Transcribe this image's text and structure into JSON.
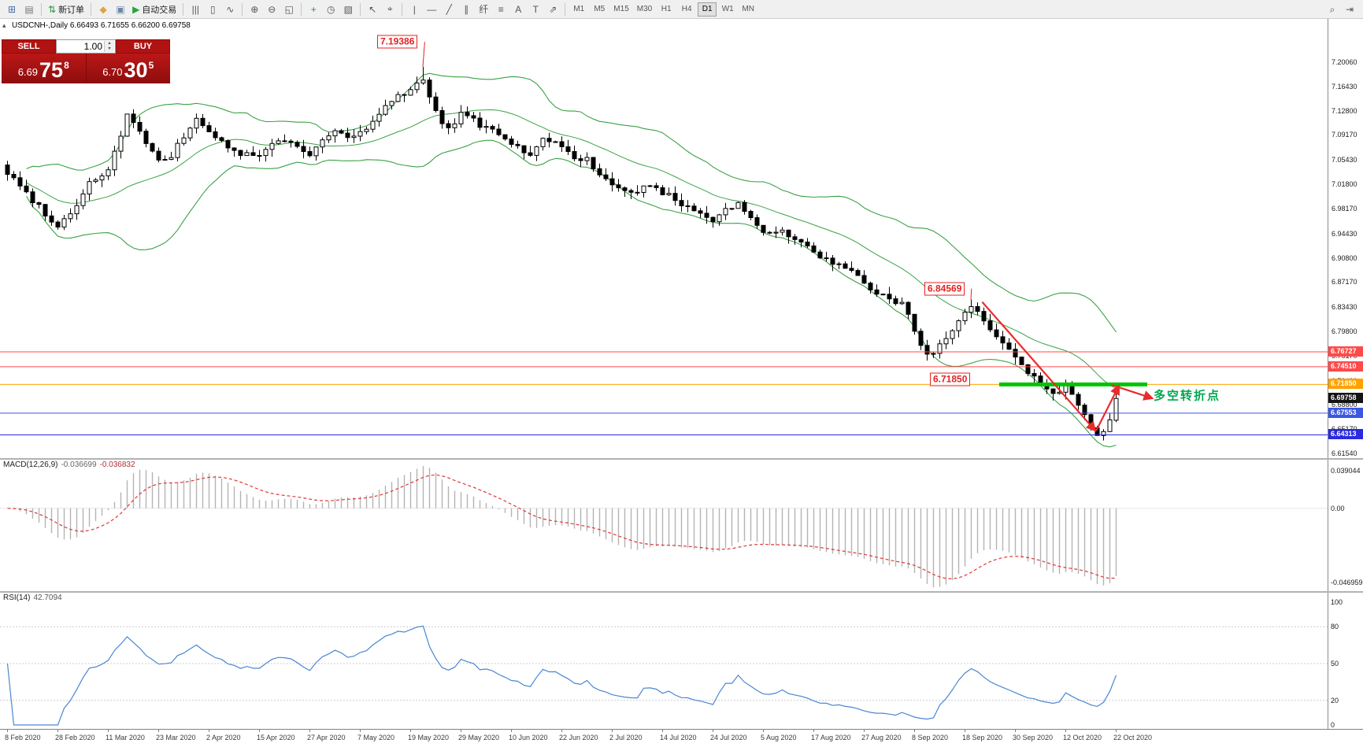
{
  "window": {
    "symbol_period": "USDCNH-,Daily",
    "ohlc_line": "6.66493 6.71655 6.66200 6.69758",
    "collapse_icon": "▴"
  },
  "toolbar": {
    "groups": [
      {
        "items": [
          {
            "name": "new-chart-icon",
            "glyph": "⊞",
            "color": "#4a6fa5"
          },
          {
            "name": "profiles-icon",
            "glyph": "▤",
            "color": "#777777"
          }
        ]
      },
      {
        "items": [
          {
            "name": "new-order-button",
            "glyph": "⇅",
            "color": "#1f9d3a",
            "label": "新订单"
          }
        ]
      },
      {
        "items": [
          {
            "name": "mql5-community-icon",
            "glyph": "◆",
            "color": "#dfa63f"
          },
          {
            "name": "virtual-hosting-icon",
            "glyph": "▣",
            "color": "#6b85a8"
          },
          {
            "name": "autotrading-button",
            "glyph": "▶",
            "color": "#26a53c",
            "label": "自动交易"
          }
        ]
      },
      {
        "items": [
          {
            "name": "bar-chart-icon",
            "glyph": "|||",
            "color": "#555555"
          },
          {
            "name": "candlestick-chart-icon",
            "glyph": "▯",
            "color": "#555555"
          },
          {
            "name": "line-chart-icon",
            "glyph": "∿",
            "color": "#555555"
          }
        ]
      },
      {
        "items": [
          {
            "name": "zoom-in-icon",
            "glyph": "⊕",
            "color": "#555555"
          },
          {
            "name": "zoom-out-icon",
            "glyph": "⊖",
            "color": "#555555"
          },
          {
            "name": "tile-windows-icon",
            "glyph": "◱",
            "color": "#555555"
          }
        ]
      },
      {
        "items": [
          {
            "name": "add-indicator-icon",
            "glyph": "+",
            "color": "#1f9d3a"
          },
          {
            "name": "periods-icon",
            "glyph": "◷",
            "color": "#555555"
          },
          {
            "name": "templates-icon",
            "glyph": "▧",
            "color": "#555555"
          }
        ]
      },
      {
        "items": [
          {
            "name": "cursor-icon",
            "glyph": "↖",
            "color": "#555555"
          },
          {
            "name": "crosshair-icon",
            "glyph": "⌖",
            "color": "#555555"
          }
        ]
      },
      {
        "items": [
          {
            "name": "vertical-line-icon",
            "glyph": "|",
            "color": "#555555"
          },
          {
            "name": "horizontal-line-icon",
            "glyph": "—",
            "color": "#555555"
          },
          {
            "name": "trendline-icon",
            "glyph": "╱",
            "color": "#555555"
          },
          {
            "name": "equidistant-channel-icon",
            "glyph": "∥",
            "color": "#555555"
          },
          {
            "name": "fibonacci-icon",
            "glyph": "纤",
            "color": "#555555"
          },
          {
            "name": "andrews-pitchfork-icon",
            "glyph": "≡",
            "color": "#555555"
          },
          {
            "name": "text-icon",
            "glyph": "A",
            "color": "#555555"
          },
          {
            "name": "text-label-icon",
            "glyph": "T",
            "color": "#555555"
          },
          {
            "name": "arrows-icon",
            "glyph": "⇗",
            "color": "#555555"
          }
        ]
      }
    ],
    "timeframes": {
      "items": [
        "M1",
        "M5",
        "M15",
        "M30",
        "H1",
        "H4",
        "D1",
        "W1",
        "MN"
      ],
      "active": "D1"
    },
    "right_icons": [
      {
        "name": "search-icon",
        "glyph": "⌕",
        "color": "#555555"
      },
      {
        "name": "scroll-to-latest-icon",
        "glyph": "⇥",
        "color": "#555555"
      }
    ]
  },
  "one_click": {
    "sell_label": "SELL",
    "buy_label": "BUY",
    "volume": "1.00",
    "spinner_up": "▴",
    "spinner_down": "▾",
    "sell": {
      "prefix": "6.69",
      "big": "75",
      "pip": "8"
    },
    "buy": {
      "prefix": "6.70",
      "big": "30",
      "pip": "5"
    }
  },
  "chart_data": {
    "type": "candlestick",
    "symbol": "USDCNH-",
    "period": "Daily",
    "ohlc": {
      "open": "6.66493",
      "high": "6.71655",
      "low": "6.66200",
      "close": "6.69758"
    },
    "price_axis_ticks": [
      "7.20060",
      "7.16430",
      "7.12800",
      "7.09170",
      "7.05430",
      "7.01800",
      "6.98170",
      "6.94430",
      "6.90800",
      "6.87170",
      "6.83430",
      "6.79800",
      "6.76170",
      "6.72430",
      "6.68800",
      "6.65170",
      "6.61540"
    ],
    "axis_range": {
      "top_price": 7.2006,
      "bottom_price": 6.6154
    },
    "date_labels": [
      "8 Feb 2020",
      "28 Feb 2020",
      "11 Mar 2020",
      "23 Mar 2020",
      "2 Apr 2020",
      "15 Apr 2020",
      "27 Apr 2020",
      "7 May 2020",
      "19 May 2020",
      "29 May 2020",
      "10 Jun 2020",
      "22 Jun 2020",
      "2 Jul 2020",
      "14 Jul 2020",
      "24 Jul 2020",
      "5 Aug 2020",
      "17 Aug 2020",
      "27 Aug 2020",
      "8 Sep 2020",
      "18 Sep 2020",
      "30 Sep 2020",
      "12 Oct 2020",
      "22 Oct 2020"
    ],
    "candles": {
      "count": 177,
      "per_label": 8,
      "keyframes": [
        [
          0,
          7.035
        ],
        [
          3,
          7.005
        ],
        [
          5,
          6.985
        ],
        [
          8,
          6.955
        ],
        [
          10,
          6.975
        ],
        [
          13,
          7.02
        ],
        [
          16,
          7.04
        ],
        [
          18,
          7.09
        ],
        [
          19,
          7.125
        ],
        [
          21,
          7.095
        ],
        [
          24,
          7.05
        ],
        [
          26,
          7.06
        ],
        [
          28,
          7.09
        ],
        [
          30,
          7.115
        ],
        [
          33,
          7.09
        ],
        [
          36,
          7.065
        ],
        [
          40,
          7.06
        ],
        [
          43,
          7.085
        ],
        [
          46,
          7.075
        ],
        [
          48,
          7.065
        ],
        [
          50,
          7.08
        ],
        [
          52,
          7.1
        ],
        [
          54,
          7.085
        ],
        [
          56,
          7.095
        ],
        [
          58,
          7.11
        ],
        [
          61,
          7.145
        ],
        [
          63,
          7.155
        ],
        [
          66,
          7.175
        ],
        [
          68,
          7.125
        ],
        [
          70,
          7.1
        ],
        [
          72,
          7.125
        ],
        [
          74,
          7.115
        ],
        [
          76,
          7.1
        ],
        [
          78,
          7.095
        ],
        [
          80,
          7.075
        ],
        [
          83,
          7.065
        ],
        [
          85,
          7.085
        ],
        [
          88,
          7.075
        ],
        [
          90,
          7.06
        ],
        [
          92,
          7.055
        ],
        [
          94,
          7.03
        ],
        [
          96,
          7.015
        ],
        [
          98,
          7.005
        ],
        [
          100,
          7.01
        ],
        [
          102,
          7.015
        ],
        [
          104,
          7.005
        ],
        [
          106,
          6.995
        ],
        [
          108,
          6.985
        ],
        [
          110,
          6.975
        ],
        [
          112,
          6.965
        ],
        [
          114,
          6.98
        ],
        [
          116,
          6.99
        ],
        [
          118,
          6.965
        ],
        [
          120,
          6.945
        ],
        [
          122,
          6.95
        ],
        [
          124,
          6.94
        ],
        [
          126,
          6.93
        ],
        [
          128,
          6.915
        ],
        [
          130,
          6.905
        ],
        [
          132,
          6.895
        ],
        [
          134,
          6.885
        ],
        [
          136,
          6.87
        ],
        [
          138,
          6.855
        ],
        [
          140,
          6.845
        ],
        [
          142,
          6.84
        ],
        [
          144,
          6.8
        ],
        [
          146,
          6.762
        ],
        [
          148,
          6.775
        ],
        [
          150,
          6.8
        ],
        [
          152,
          6.822
        ],
        [
          153,
          6.832
        ],
        [
          155,
          6.815
        ],
        [
          157,
          6.792
        ],
        [
          159,
          6.775
        ],
        [
          160,
          6.758
        ],
        [
          162,
          6.738
        ],
        [
          164,
          6.72
        ],
        [
          166,
          6.705
        ],
        [
          168,
          6.716
        ],
        [
          170,
          6.69
        ],
        [
          171,
          6.675
        ],
        [
          172,
          6.658
        ],
        [
          173,
          6.646
        ],
        [
          174,
          6.652
        ],
        [
          175,
          6.665
        ],
        [
          176,
          6.69758
        ]
      ],
      "force_high": {
        "66": 7.19386,
        "153": 6.84569
      },
      "force_low": {
        "173": 6.64313
      },
      "last": {
        "open": 6.66493,
        "high": 6.71655,
        "low": 6.662,
        "close": 6.69758
      }
    },
    "bollinger": {
      "period": 20,
      "deviation": 2,
      "color": "#3aa245"
    },
    "hlines": [
      {
        "label": "6.76727",
        "price": 6.76727,
        "color": "#ff4a4a"
      },
      {
        "label": "6.74510",
        "price": 6.7451,
        "color": "#ff4a4a"
      },
      {
        "label": "6.71850",
        "price": 6.7185,
        "color": "#ffa200"
      },
      {
        "label": "6.67553",
        "price": 6.67553,
        "color": "#3c58e0"
      },
      {
        "label": "6.64313",
        "price": 6.64313,
        "color": "#2a2ae0"
      }
    ],
    "bid_tag": {
      "label": "6.69758",
      "price": 6.69758,
      "color": "#141414"
    },
    "green_segment": {
      "price": 6.7185,
      "from_index": 157.5,
      "to_index": 181,
      "color": "#00c400",
      "width": 5
    },
    "arrows": [
      {
        "name": "downtrend-arrow",
        "from": [
          154.8,
          6.842
        ],
        "to": [
          172.6,
          6.651
        ],
        "color": "#e82c2c",
        "width": 2.2
      },
      {
        "name": "rebound-arrow",
        "from": [
          172.9,
          6.6495
        ],
        "to": [
          176.4,
          6.7145
        ],
        "color": "#e82c2c",
        "width": 2.2
      },
      {
        "name": "breakout-arrow",
        "from": [
          175.3,
          6.718
        ],
        "to": [
          181.6,
          6.6985
        ],
        "color": "#e82c2c",
        "width": 2.2
      }
    ],
    "price_labels": [
      {
        "text": "7.19386",
        "index": 58.8,
        "price": 7.231,
        "pointer": {
          "index": 66,
          "price": 7.19386
        }
      },
      {
        "text": "6.84569",
        "index": 145.6,
        "price": 6.862,
        "pointer": {
          "index": 153,
          "price": 6.84569
        }
      },
      {
        "text": "6.71850",
        "index": 146.5,
        "price": 6.726
      }
    ],
    "note_text": {
      "text": "多空转折点",
      "index": 182,
      "price": 6.702,
      "color": "#00a84f"
    },
    "macd": {
      "name": "MACD(12,26,9)",
      "value_main": "-0.036699",
      "value_signal": "-0.036832",
      "fast": 12,
      "slow": 26,
      "signal": 9,
      "axis_labels": [
        "0.039044",
        "0.00",
        "-0.046959"
      ],
      "hist_color": "#b4b4b4",
      "signal_color": "#e03636"
    },
    "rsi": {
      "name": "RSI(14)",
      "value": "42.7094",
      "period": 14,
      "color": "#4a86d2",
      "levels": [
        80,
        50,
        20
      ],
      "axis_labels": [
        "100",
        "80",
        "50",
        "20",
        "0"
      ]
    }
  }
}
